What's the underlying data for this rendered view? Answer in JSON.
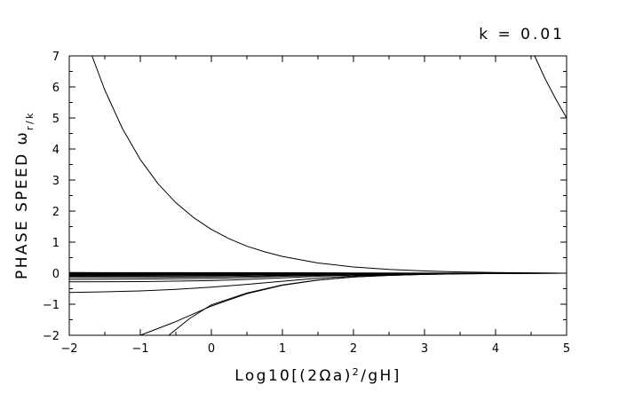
{
  "chart_data": {
    "type": "line",
    "title": "",
    "annotation": "k = 0.01",
    "xlabel": "Log10[(2Ωa)²/gH]",
    "xlabel_parts": {
      "pre": "Log10[(2Ωa)",
      "sup": "2",
      "post": "/gH]"
    },
    "ylabel": "PHASE SPEED ωr/k",
    "ylabel_parts": {
      "pre": "PHASE SPEED ",
      "symbol": "ω",
      "sub": "r/k"
    },
    "xlim": [
      -2,
      5
    ],
    "ylim": [
      -2,
      7
    ],
    "x_ticks": [
      -2,
      -1,
      0,
      1,
      2,
      3,
      4,
      5
    ],
    "y_ticks": [
      -2,
      -1,
      0,
      1,
      2,
      3,
      4,
      5,
      6,
      7
    ],
    "x_tick_labels": [
      "−2",
      "−1",
      "0",
      "1",
      "2",
      "3",
      "4",
      "5"
    ],
    "y_tick_labels": [
      "−2",
      "−1",
      "0",
      "1",
      "2",
      "3",
      "4",
      "5",
      "6",
      "7"
    ],
    "grid": false,
    "line_color": "#000000",
    "series": [
      {
        "x": [
          -1.68,
          -1.5,
          -1.25,
          -1.0,
          -0.75,
          -0.5,
          -0.25,
          0.0,
          0.25,
          0.5,
          0.75,
          1.0,
          1.5,
          2.0,
          2.5,
          3.0,
          3.5,
          4.0,
          5.0
        ],
        "y": [
          7.0,
          5.9,
          4.65,
          3.66,
          2.88,
          2.27,
          1.79,
          1.41,
          1.11,
          0.87,
          0.69,
          0.54,
          0.33,
          0.2,
          0.12,
          0.07,
          0.04,
          0.02,
          0.0
        ]
      },
      {
        "x": [
          4.55,
          4.7,
          4.85,
          5.0
        ],
        "y": [
          7.0,
          6.25,
          5.6,
          5.0
        ]
      },
      {
        "x": [
          -1.0,
          -0.5,
          0.0,
          0.5,
          1.0,
          1.5,
          2.0,
          2.5,
          3.0,
          3.5,
          4.0,
          5.0
        ],
        "y": [
          -2.0,
          -1.56,
          -1.06,
          -0.66,
          -0.39,
          -0.22,
          -0.12,
          -0.07,
          -0.04,
          -0.02,
          -0.01,
          0.0
        ]
      },
      {
        "x": [
          -0.6,
          -0.3,
          0.0,
          0.5,
          1.0,
          1.5,
          2.0,
          2.5,
          3.0,
          3.5,
          4.0,
          5.0
        ],
        "y": [
          -2.0,
          -1.45,
          -1.02,
          -0.64,
          -0.38,
          -0.22,
          -0.12,
          -0.07,
          -0.04,
          -0.02,
          -0.01,
          0.0
        ]
      },
      {
        "x": [
          -2.0,
          -1.5,
          -1.0,
          -0.5,
          0.0,
          0.5,
          1.0,
          1.5,
          2.0,
          2.5,
          3.0,
          3.5,
          4.0,
          5.0
        ],
        "y": [
          -0.62,
          -0.6,
          -0.57,
          -0.52,
          -0.45,
          -0.36,
          -0.26,
          -0.16,
          -0.09,
          -0.05,
          -0.03,
          -0.015,
          -0.008,
          0.0
        ]
      },
      {
        "x": [
          -2.0,
          -1.0,
          0.0,
          0.5,
          1.0,
          1.5,
          2.0,
          2.5,
          3.0,
          3.5,
          4.0,
          5.0
        ],
        "y": [
          -0.28,
          -0.27,
          -0.24,
          -0.2,
          -0.15,
          -0.1,
          -0.06,
          -0.035,
          -0.02,
          -0.01,
          -0.005,
          0.0
        ]
      },
      {
        "x": [
          -2.0,
          -1.0,
          0.0,
          0.5,
          1.0,
          1.5,
          2.0,
          2.5,
          3.0,
          3.5,
          4.0,
          5.0
        ],
        "y": [
          -0.2,
          -0.19,
          -0.17,
          -0.14,
          -0.1,
          -0.07,
          -0.045,
          -0.025,
          -0.014,
          -0.008,
          -0.004,
          0.0
        ]
      },
      {
        "x": [
          -2.0,
          -1.0,
          0.0,
          0.5,
          1.0,
          1.5,
          2.0,
          2.5,
          3.0,
          4.0,
          5.0
        ],
        "y": [
          -0.14,
          -0.135,
          -0.12,
          -0.1,
          -0.075,
          -0.05,
          -0.032,
          -0.018,
          -0.01,
          -0.003,
          0.0
        ]
      },
      {
        "x": [
          -2.0,
          -1.0,
          0.0,
          1.0,
          1.5,
          2.0,
          2.5,
          3.0,
          4.0,
          5.0
        ],
        "y": [
          -0.1,
          -0.095,
          -0.085,
          -0.055,
          -0.037,
          -0.023,
          -0.013,
          -0.007,
          -0.002,
          0.0
        ]
      },
      {
        "x": [
          -2.0,
          -1.0,
          0.0,
          1.0,
          2.0,
          3.0,
          4.0,
          5.0
        ],
        "y": [
          -0.075,
          -0.072,
          -0.064,
          -0.042,
          -0.018,
          -0.005,
          -0.001,
          0.0
        ]
      },
      {
        "x": [
          -2.0,
          -1.0,
          0.0,
          1.0,
          2.0,
          3.0,
          4.0,
          5.0
        ],
        "y": [
          -0.055,
          -0.053,
          -0.047,
          -0.031,
          -0.013,
          -0.004,
          -0.001,
          0.0
        ]
      },
      {
        "x": [
          -2.0,
          -1.0,
          0.0,
          1.0,
          2.0,
          3.0,
          4.0,
          5.0
        ],
        "y": [
          -0.04,
          -0.038,
          -0.034,
          -0.022,
          -0.009,
          -0.003,
          -0.001,
          0.0
        ]
      },
      {
        "x": [
          -2.0,
          -1.0,
          0.0,
          1.0,
          2.0,
          3.0,
          5.0
        ],
        "y": [
          -0.025,
          -0.024,
          -0.021,
          -0.014,
          -0.006,
          -0.002,
          0.0
        ]
      },
      {
        "x": [
          -2.0,
          0.0,
          1.0,
          2.0,
          3.0,
          5.0
        ],
        "y": [
          -0.012,
          -0.01,
          -0.007,
          -0.003,
          -0.001,
          0.0
        ]
      },
      {
        "x": [
          -2.0,
          0.0,
          2.0,
          5.0
        ],
        "y": [
          0.02,
          0.018,
          0.008,
          0.0
        ]
      },
      {
        "x": [
          -2.0,
          0.0,
          2.0,
          5.0
        ],
        "y": [
          0.0,
          0.0,
          0.0,
          0.0
        ]
      }
    ]
  }
}
